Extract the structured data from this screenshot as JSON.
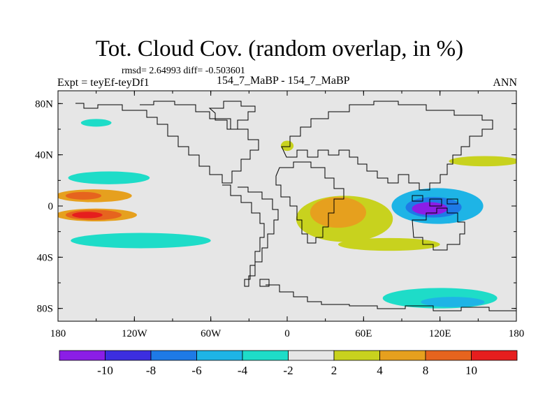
{
  "header": {
    "title": "Tot. Cloud Cov. (random overlap, in %)",
    "stats": "rmsd= 2.64993 diff= -0.503601",
    "left_label": "Expt = teyEf-teyDf1",
    "center_label": "154_7_MaBP - 154_7_MaBP",
    "right_label": "ANN"
  },
  "axes": {
    "lon_ticks": [
      {
        "value": -180,
        "label": "180"
      },
      {
        "value": -120,
        "label": "120W"
      },
      {
        "value": -60,
        "label": "60W"
      },
      {
        "value": 0,
        "label": "0"
      },
      {
        "value": 60,
        "label": "60E"
      },
      {
        "value": 120,
        "label": "120E"
      },
      {
        "value": 180,
        "label": "180"
      }
    ],
    "lat_ticks": [
      {
        "value": 80,
        "label": "80N"
      },
      {
        "value": 40,
        "label": "40N"
      },
      {
        "value": 0,
        "label": "0"
      },
      {
        "value": -40,
        "label": "40S"
      },
      {
        "value": -80,
        "label": "80S"
      }
    ]
  },
  "colorbar": {
    "colors": [
      "#8b1ee6",
      "#3c2ee0",
      "#1e7ae6",
      "#1eb4e6",
      "#1edcc8",
      "#e6e6e6",
      "#c8d21e",
      "#e6a01e",
      "#e6641e",
      "#e61e1e"
    ],
    "labels": [
      {
        "boundary": 1,
        "label": "-10"
      },
      {
        "boundary": 2,
        "label": "-8"
      },
      {
        "boundary": 3,
        "label": "-6"
      },
      {
        "boundary": 4,
        "label": "-4"
      },
      {
        "boundary": 5,
        "label": "-2"
      },
      {
        "boundary": 6,
        "label": "2"
      },
      {
        "boundary": 7,
        "label": "4"
      },
      {
        "boundary": 8,
        "label": "8"
      },
      {
        "boundary": 9,
        "label": "10"
      }
    ]
  },
  "chart_data": {
    "type": "heatmap",
    "title": "Tot. Cloud Cov. (random overlap, in %)",
    "xlim": [
      -180,
      180
    ],
    "ylim": [
      -90,
      90
    ],
    "levels": [
      -10,
      -8,
      -6,
      -4,
      -2,
      2,
      4,
      8,
      10
    ],
    "features": [
      {
        "name": "east-pacific-itcz-positive",
        "band": 7,
        "lon": -152,
        "lat": 8,
        "rlon": 30,
        "rlat": 5
      },
      {
        "name": "east-pacific-itcz-positive-core",
        "band": 8,
        "lon": -160,
        "lat": 8,
        "rlon": 14,
        "rlat": 3
      },
      {
        "name": "south-pacific-positive",
        "band": 7,
        "lon": -150,
        "lat": -7,
        "rlon": 32,
        "rlat": 5
      },
      {
        "name": "south-pacific-positive-strong",
        "band": 8,
        "lon": -152,
        "lat": -7,
        "rlon": 22,
        "rlat": 4
      },
      {
        "name": "south-pacific-positive-max",
        "band": 9,
        "lon": -157,
        "lat": -7,
        "rlon": 12,
        "rlat": 2.5
      },
      {
        "name": "north-pacific-negative",
        "band": 4,
        "lon": -140,
        "lat": 22,
        "rlon": 32,
        "rlat": 5
      },
      {
        "name": "southern-ocean-negative",
        "band": 4,
        "lon": -115,
        "lat": -27,
        "rlon": 55,
        "rlat": 6
      },
      {
        "name": "africa-indian-positive",
        "band": 6,
        "lon": 45,
        "lat": -10,
        "rlon": 38,
        "rlat": 18
      },
      {
        "name": "africa-indian-positive-core",
        "band": 7,
        "lon": 40,
        "lat": -5,
        "rlon": 22,
        "rlat": 12
      },
      {
        "name": "indian-ocean-positive-band",
        "band": 6,
        "lon": 80,
        "lat": -30,
        "rlon": 40,
        "rlat": 5
      },
      {
        "name": "maritime-continent-negative",
        "band": 3,
        "lon": 118,
        "lat": 0,
        "rlon": 36,
        "rlat": 14
      },
      {
        "name": "maritime-continent-negative-strong",
        "band": 2,
        "lon": 115,
        "lat": -1,
        "rlon": 22,
        "rlat": 8
      },
      {
        "name": "maritime-continent-negative-max",
        "band": 0,
        "lon": 112,
        "lat": -2,
        "rlon": 14,
        "rlat": 5
      },
      {
        "name": "west-pacific-positive",
        "band": 6,
        "lon": 155,
        "lat": 35,
        "rlon": 28,
        "rlat": 4
      },
      {
        "name": "antarctic-negative",
        "band": 4,
        "lon": 120,
        "lat": -72,
        "rlon": 45,
        "rlat": 8
      },
      {
        "name": "antarctic-negative-core",
        "band": 3,
        "lon": 130,
        "lat": -75,
        "rlon": 25,
        "rlat": 4
      },
      {
        "name": "north-atlantic-positive",
        "band": 6,
        "lon": 0,
        "lat": 47,
        "rlon": 5,
        "rlat": 4
      },
      {
        "name": "north-pacific-arctic-negative",
        "band": 4,
        "lon": -150,
        "lat": 65,
        "rlon": 12,
        "rlat": 3
      }
    ]
  }
}
